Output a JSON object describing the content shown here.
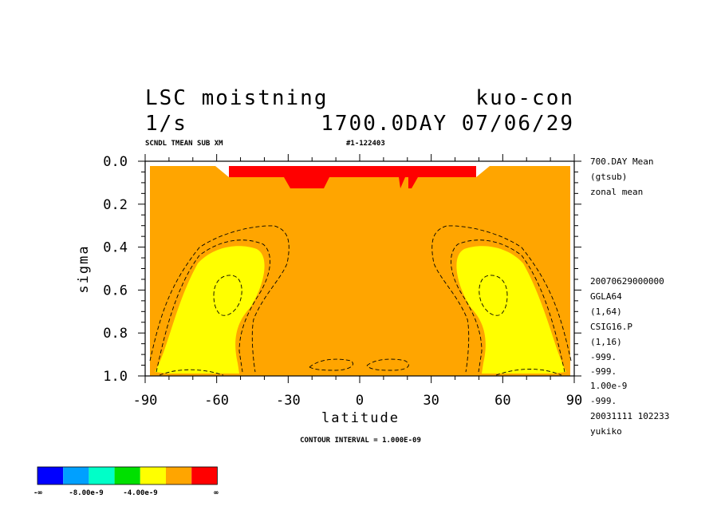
{
  "chart_data": {
    "type": "heatmap",
    "title": "LSC moistning",
    "title_right": "kuo-con",
    "units": "1/s",
    "subtitle_right": "1700.0DAY 07/06/29",
    "run_label": "SCNDL TMEAN SUB XM",
    "run_id": "#1-122403",
    "xlabel": "latitude",
    "ylabel": "sigma",
    "x_ticks": [
      "-90",
      "-60",
      "-30",
      "0",
      "30",
      "60",
      "90"
    ],
    "y_ticks": [
      "0.0",
      "0.2",
      "0.4",
      "0.6",
      "0.8",
      "1.0"
    ],
    "xlim": [
      -90,
      90
    ],
    "ylim": [
      1.0,
      0.0
    ],
    "contour_interval": "CONTOUR INTERVAL = 1.000E-09",
    "right_notes_top": [
      "700.DAY Mean",
      "(gtsub)",
      "zonal mean"
    ],
    "right_notes_bottom": [
      "20070629000000",
      "GGLA64",
      "(1,64)",
      "CSIG16.P",
      "(1,16)",
      "-999.",
      "-999.",
      "1.00e-9",
      "-999.",
      "20031111 102233",
      "yukiko"
    ],
    "colorbar": {
      "colors": [
        "#0000ff",
        "#00a0ff",
        "#00ffc8",
        "#00e000",
        "#ffff00",
        "#ffa500",
        "#ff0000"
      ],
      "labels": [
        "-∞",
        "-8.00e-9",
        "-4.00e-9",
        "∞"
      ]
    },
    "fields": [
      {
        "name": "background",
        "level": "-1e-9 to 0",
        "color": "#ffa500"
      },
      {
        "name": "upper-negative-band",
        "level": "<-1e-9",
        "color": "#ff0000",
        "lat_range": [
          -55,
          49
        ],
        "sigma_range": [
          0.02,
          0.13
        ]
      },
      {
        "name": "sh-positive-lobe",
        "level": ">0",
        "color": "#ffff00",
        "lat_range": [
          -87,
          -39
        ],
        "sigma_range": [
          0.38,
          1.0
        ]
      },
      {
        "name": "nh-positive-lobe",
        "level": ">0",
        "color": "#ffff00",
        "lat_range": [
          39,
          87
        ],
        "sigma_range": [
          0.38,
          1.0
        ]
      }
    ]
  }
}
